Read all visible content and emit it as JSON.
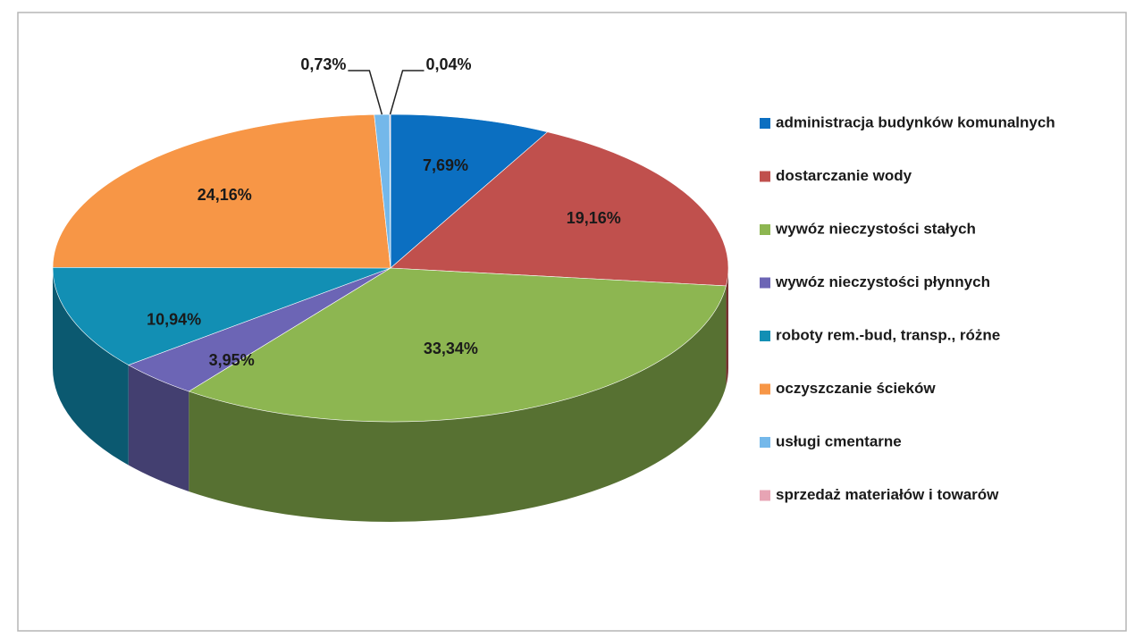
{
  "chart_data": {
    "type": "pie",
    "categories": [
      "administracja budynków komunalnych",
      "dostarczanie wody",
      "wywóz nieczystości stałych",
      "wywóz nieczystości płynnych",
      "roboty rem.-bud, transp., różne",
      "oczyszczanie ścieków",
      "usługi cmentarne",
      "sprzedaż materiałów i towarów"
    ],
    "values": [
      7.69,
      19.16,
      33.34,
      3.95,
      10.94,
      24.16,
      0.73,
      0.04
    ],
    "value_labels": [
      "7,69%",
      "19,16%",
      "33,34%",
      "3,95%",
      "10,94%",
      "24,16%",
      "0,73%",
      "0,04%"
    ],
    "colors": [
      "#0b6fc1",
      "#c0504d",
      "#8db651",
      "#6c65b5",
      "#128fb4",
      "#f79646",
      "#74b8ea",
      "#e7a4b4"
    ],
    "legend": "right"
  }
}
